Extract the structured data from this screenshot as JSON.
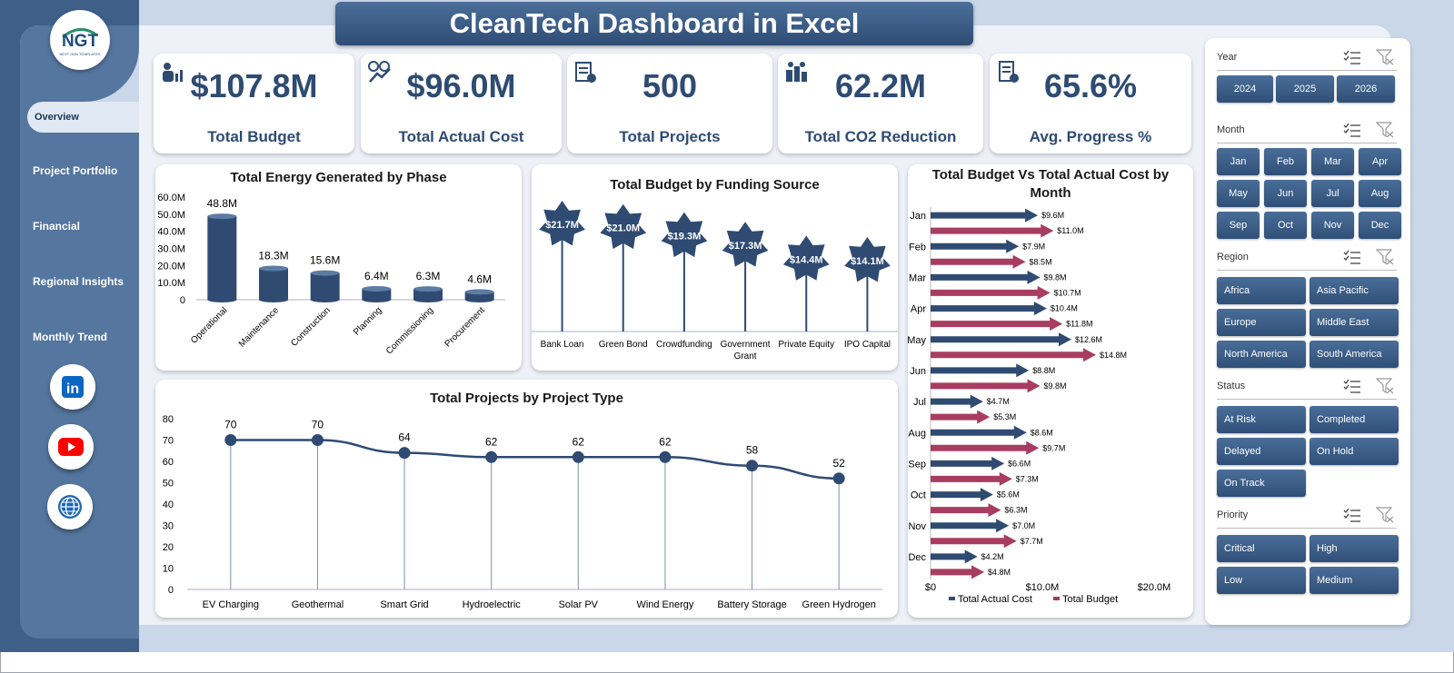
{
  "app": {
    "title": "CleanTech Dashboard in Excel",
    "logo_text": "NGT",
    "logo_subtext": "NEXT GEN TEMPLATES"
  },
  "nav": {
    "items": [
      {
        "label": "Overview",
        "active": true
      },
      {
        "label": "Project Portfolio"
      },
      {
        "label": "Financial"
      },
      {
        "label": "Regional Insights"
      },
      {
        "label": "Monthly Trend"
      }
    ],
    "social": [
      {
        "icon": "linkedin-icon",
        "text": "in",
        "color": "#0a66c2"
      },
      {
        "icon": "youtube-icon",
        "color": "#ff0000"
      },
      {
        "icon": "globe-icon",
        "color": "#1e66b8"
      }
    ]
  },
  "kpis": [
    {
      "value": "$107.8M",
      "label": "Total Budget",
      "icon": "budget-icon"
    },
    {
      "value": "$96.0M",
      "label": "Total Actual Cost",
      "icon": "cost-icon"
    },
    {
      "value": "500",
      "label": "Total Projects",
      "icon": "projects-icon"
    },
    {
      "value": "62.2M",
      "label": "Total CO2 Reduction",
      "icon": "co2-icon"
    },
    {
      "value": "65.6%",
      "label": "Avg. Progress %",
      "icon": "progress-icon"
    }
  ],
  "charts": {
    "energy": {
      "title": "Total Energy Generated by Phase"
    },
    "funding": {
      "title": "Total Budget by Funding Source"
    },
    "projects": {
      "title": "Total Projects by Project Type"
    },
    "monthly": {
      "title": "Total Budget Vs Total Actual Cost by Month"
    }
  },
  "chart_data": [
    {
      "type": "bar",
      "title": "Total Energy Generated by Phase",
      "categories": [
        "Operational",
        "Maintenance",
        "Construction",
        "Planning",
        "Commissioning",
        "Procurement"
      ],
      "values": [
        48.8,
        18.3,
        15.6,
        6.4,
        6.3,
        4.6
      ],
      "data_labels": [
        "48.8M",
        "18.3M",
        "15.6M",
        "6.4M",
        "6.3M",
        "4.6M"
      ],
      "y_ticks": [
        "0",
        "10.0M",
        "20.0M",
        "30.0M",
        "40.0M",
        "50.0M",
        "60.0M"
      ],
      "ylim": [
        0,
        60
      ],
      "color": "#2f4b72"
    },
    {
      "type": "bar",
      "title": "Total Budget by Funding Source",
      "categories": [
        "Bank Loan",
        "Green Bond",
        "Crowdfunding",
        "Government Grant",
        "Private Equity",
        "IPO Capital"
      ],
      "values": [
        21.7,
        21.0,
        19.3,
        17.3,
        14.4,
        14.1
      ],
      "data_labels": [
        "$21.7M",
        "$21.0M",
        "$19.3M",
        "$17.3M",
        "$14.4M",
        "$14.1M"
      ],
      "color": "#2f4b72"
    },
    {
      "type": "line",
      "title": "Total Projects by Project Type",
      "categories": [
        "EV Charging",
        "Geothermal",
        "Smart Grid",
        "Hydroelectric",
        "Solar PV",
        "Wind Energy",
        "Battery Storage",
        "Green Hydrogen"
      ],
      "values": [
        70,
        70,
        64,
        62,
        62,
        62,
        58,
        52
      ],
      "y_ticks": [
        "0",
        "10",
        "20",
        "30",
        "40",
        "50",
        "60",
        "70",
        "80"
      ],
      "ylim": [
        0,
        80
      ],
      "color": "#2f4b72"
    },
    {
      "type": "bar",
      "title": "Total Budget Vs Total Actual Cost by Month",
      "categories": [
        "Jan",
        "Feb",
        "Mar",
        "Apr",
        "May",
        "Jun",
        "Jul",
        "Aug",
        "Sep",
        "Oct",
        "Nov",
        "Dec"
      ],
      "series": [
        {
          "name": "Total Actual Cost",
          "values": [
            9.6,
            7.9,
            9.8,
            10.4,
            12.6,
            8.8,
            4.7,
            8.6,
            6.6,
            5.6,
            7.0,
            4.2
          ],
          "labels": [
            "$9.6M",
            "$7.9M",
            "$9.8M",
            "$10.4M",
            "$12.6M",
            "$8.8M",
            "$4.7M",
            "$8.6M",
            "$6.6M",
            "$5.6M",
            "$7.0M",
            "$4.2M"
          ],
          "color": "#2f4b72"
        },
        {
          "name": "Total Budget",
          "values": [
            11.0,
            8.5,
            10.7,
            11.8,
            14.8,
            9.8,
            5.3,
            9.7,
            7.3,
            6.3,
            7.7,
            4.8
          ],
          "labels": [
            "$11.0M",
            "$8.5M",
            "$10.7M",
            "$11.8M",
            "$14.8M",
            "$9.8M",
            "$5.3M",
            "$9.7M",
            "$7.3M",
            "$6.3M",
            "$7.7M",
            "$4.8M"
          ],
          "color": "#a83d61"
        }
      ],
      "x_ticks": [
        "$0",
        "$10.0M",
        "$20.0M"
      ],
      "xlim": [
        0,
        20
      ],
      "orientation": "horizontal"
    }
  ],
  "slicers": [
    {
      "title": "Year",
      "items": [
        "2024",
        "2025",
        "2026"
      ]
    },
    {
      "title": "Month",
      "items": [
        "Jan",
        "Feb",
        "Mar",
        "Apr",
        "May",
        "Jun",
        "Jul",
        "Aug",
        "Sep",
        "Oct",
        "Nov",
        "Dec"
      ]
    },
    {
      "title": "Region",
      "items": [
        "Africa",
        "Asia Pacific",
        "Europe",
        "Middle East",
        "North America",
        "South America"
      ]
    },
    {
      "title": "Status",
      "items": [
        "At Risk",
        "Completed",
        "Delayed",
        "On Hold",
        "On Track"
      ]
    },
    {
      "title": "Priority",
      "items": [
        "Critical",
        "High",
        "Low",
        "Medium"
      ]
    }
  ]
}
